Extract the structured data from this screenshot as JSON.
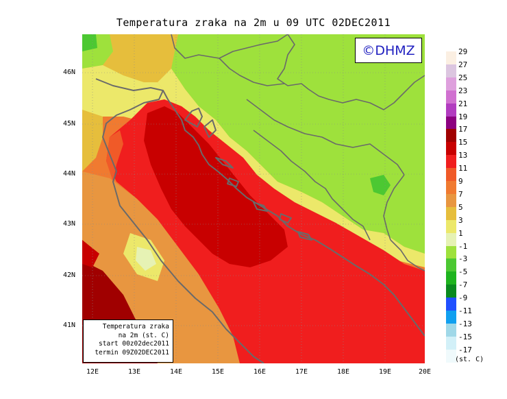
{
  "title": "Temperatura zraka na 2m u 09 UTC 02DEC2011",
  "logo_text": "©DHMZ",
  "info_box": {
    "line1": "Temperatura zraka",
    "line2": "na 2m (st. C)",
    "line3": "start 00z02dec2011",
    "line4": "termin 09Z02DEC2011"
  },
  "lat_labels": [
    "46N",
    "45N",
    "44N",
    "43N",
    "42N",
    "41N"
  ],
  "lon_labels": [
    "12E",
    "13E",
    "14E",
    "15E",
    "16E",
    "17E",
    "18E",
    "19E",
    "20E"
  ],
  "legend": {
    "unit": "(st. C)",
    "items": [
      {
        "label": "29",
        "color": "#fbefe2"
      },
      {
        "label": "27",
        "color": "#dcc6e0"
      },
      {
        "label": "25",
        "color": "#dea0dd"
      },
      {
        "label": "23",
        "color": "#d070d0"
      },
      {
        "label": "21",
        "color": "#b23cc0"
      },
      {
        "label": "19",
        "color": "#8c0080"
      },
      {
        "label": "17",
        "color": "#a00000"
      },
      {
        "label": "15",
        "color": "#c80000"
      },
      {
        "label": "13",
        "color": "#f01e1e"
      },
      {
        "label": "11",
        "color": "#f05a28"
      },
      {
        "label": "9",
        "color": "#f07a30"
      },
      {
        "label": "7",
        "color": "#e89640"
      },
      {
        "label": "5",
        "color": "#e6be3c"
      },
      {
        "label": "3",
        "color": "#ece86a"
      },
      {
        "label": "1",
        "color": "#e6f2b4"
      },
      {
        "label": "-1",
        "color": "#9ee13c"
      },
      {
        "label": "-3",
        "color": "#4cc832"
      },
      {
        "label": "-5",
        "color": "#1eb41e"
      },
      {
        "label": "-7",
        "color": "#0a8a1e"
      },
      {
        "label": "-9",
        "color": "#2050ff"
      },
      {
        "label": "-11",
        "color": "#10a0f0"
      },
      {
        "label": "-13",
        "color": "#a0d8e8"
      },
      {
        "label": "-15",
        "color": "#d2f0f8"
      },
      {
        "label": "-17",
        "color": "#f0fafc"
      }
    ]
  }
}
